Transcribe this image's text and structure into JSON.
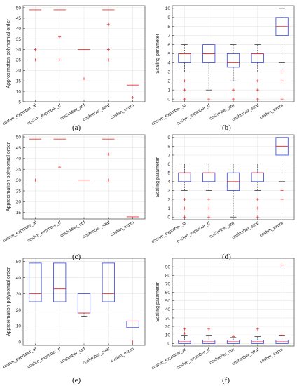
{
  "chart_data": [
    {
      "type": "box",
      "panel": "(a)",
      "ylabel": "Approximation polynomial order",
      "ylim": [
        5,
        51
      ],
      "yticks": [
        5,
        10,
        15,
        20,
        25,
        30,
        35,
        40,
        45,
        50
      ],
      "categories": [
        "coshm_expmber_al",
        "coshm_expmber_rf",
        "coshmber_strf",
        "coshmber_stral",
        "coshm_expm"
      ],
      "boxes": [
        {
          "q1": 49,
          "median": 49,
          "q3": 49,
          "whisker_low": 49,
          "whisker_high": 49,
          "outliers": [
            30,
            25
          ]
        },
        {
          "q1": 49,
          "median": 49,
          "q3": 49,
          "whisker_low": 49,
          "whisker_high": 49,
          "outliers": [
            36,
            25
          ]
        },
        {
          "q1": 30,
          "median": 30,
          "q3": 30,
          "whisker_low": 30,
          "whisker_high": 30,
          "outliers": [
            16
          ]
        },
        {
          "q1": 49,
          "median": 49,
          "q3": 49,
          "whisker_low": 49,
          "whisker_high": 49,
          "outliers": [
            42,
            30,
            25
          ]
        },
        {
          "q1": 13,
          "median": 13,
          "q3": 13,
          "whisker_low": 13,
          "whisker_high": 13,
          "outliers": [
            7
          ]
        }
      ]
    },
    {
      "type": "box",
      "panel": "(b)",
      "ylabel": "Scaling parameter",
      "ylim": [
        -0.3,
        10.3
      ],
      "yticks": [
        0,
        1,
        2,
        3,
        4,
        5,
        6,
        7,
        8,
        9,
        10
      ],
      "categories": [
        "coshm_expmber_al",
        "coshm_expmber_rf",
        "coshmber_strf",
        "coshmber_stral",
        "coshm_expm"
      ],
      "boxes": [
        {
          "q1": 4,
          "median": 5,
          "q3": 5,
          "whisker_low": 3,
          "whisker_high": 6,
          "outliers": [
            2,
            1,
            0
          ]
        },
        {
          "q1": 4,
          "median": 5,
          "q3": 6,
          "whisker_low": 1,
          "whisker_high": 6,
          "outliers": [
            0
          ]
        },
        {
          "q1": 3.5,
          "median": 4,
          "q3": 5,
          "whisker_low": 2,
          "whisker_high": 6,
          "outliers": [
            1,
            0
          ]
        },
        {
          "q1": 4,
          "median": 5,
          "q3": 5,
          "whisker_low": 3,
          "whisker_high": 6,
          "outliers": [
            2,
            1,
            0
          ]
        },
        {
          "q1": 7,
          "median": 8,
          "q3": 9,
          "whisker_low": 4,
          "whisker_high": 10,
          "outliers": [
            3,
            2,
            0
          ]
        }
      ]
    },
    {
      "type": "box",
      "panel": "(c)",
      "ylabel": "Approximation polynomial order",
      "ylim": [
        12,
        51
      ],
      "yticks": [
        15,
        20,
        25,
        30,
        35,
        40,
        45,
        50
      ],
      "categories": [
        "coshm_expmber_al",
        "coshm_expmber_rf",
        "coshmber_strf",
        "coshmber_stral",
        "coshm_expm"
      ],
      "boxes": [
        {
          "q1": 49,
          "median": 49,
          "q3": 49,
          "whisker_low": 49,
          "whisker_high": 49,
          "outliers": [
            30
          ]
        },
        {
          "q1": 49,
          "median": 49,
          "q3": 49,
          "whisker_low": 49,
          "whisker_high": 49,
          "outliers": [
            36
          ]
        },
        {
          "q1": 30,
          "median": 30,
          "q3": 30,
          "whisker_low": 30,
          "whisker_high": 30,
          "outliers": []
        },
        {
          "q1": 49,
          "median": 49,
          "q3": 49,
          "whisker_low": 49,
          "whisker_high": 49,
          "outliers": [
            42,
            30
          ]
        },
        {
          "q1": 13,
          "median": 13,
          "q3": 13,
          "whisker_low": 13,
          "whisker_high": 13,
          "outliers": []
        }
      ]
    },
    {
      "type": "box",
      "panel": "(d)",
      "ylabel": "Scaling parameter",
      "ylim": [
        -0.3,
        9.3
      ],
      "yticks": [
        0,
        1,
        2,
        3,
        4,
        5,
        6,
        7,
        8,
        9
      ],
      "categories": [
        "coshm_expmber_al",
        "coshm_expmber_rf",
        "coshmber_strf",
        "coshmber_stral",
        "coshm_expm"
      ],
      "boxes": [
        {
          "q1": 4,
          "median": 5,
          "q3": 5,
          "whisker_low": 3,
          "whisker_high": 6,
          "outliers": [
            2,
            1,
            0
          ]
        },
        {
          "q1": 4,
          "median": 5,
          "q3": 5,
          "whisker_low": 3,
          "whisker_high": 6,
          "outliers": [
            2,
            1,
            0
          ]
        },
        {
          "q1": 3,
          "median": 4,
          "q3": 5,
          "whisker_low": 0,
          "whisker_high": 6,
          "outliers": []
        },
        {
          "q1": 4,
          "median": 5,
          "q3": 5,
          "whisker_low": 3,
          "whisker_high": 6,
          "outliers": [
            2,
            1,
            0
          ]
        },
        {
          "q1": 7,
          "median": 8,
          "q3": 9,
          "whisker_low": 4,
          "whisker_high": 9,
          "outliers": [
            3,
            2
          ]
        }
      ]
    },
    {
      "type": "box",
      "panel": "(e)",
      "ylabel": "Approximation polynomial order",
      "ylim": [
        -2,
        52
      ],
      "yticks": [
        0,
        10,
        20,
        30,
        40,
        50
      ],
      "categories": [
        "coshm_expmber_al",
        "coshm_expmber_rf",
        "coshmber_strf",
        "coshmber_stral",
        "coshm_expm"
      ],
      "boxes": [
        {
          "q1": 25,
          "median": 30,
          "q3": 49,
          "whisker_low": 25,
          "whisker_high": 49,
          "outliers": []
        },
        {
          "q1": 25,
          "median": 33,
          "q3": 49,
          "whisker_low": 25,
          "whisker_high": 49,
          "outliers": []
        },
        {
          "q1": 18,
          "median": 18,
          "q3": 30,
          "whisker_low": 16,
          "whisker_high": 30,
          "outliers": []
        },
        {
          "q1": 25,
          "median": 30,
          "q3": 49,
          "whisker_low": 25,
          "whisker_high": 49,
          "outliers": []
        },
        {
          "q1": 9,
          "median": 13,
          "q3": 13,
          "whisker_low": 9,
          "whisker_high": 13,
          "outliers": [
            0
          ]
        }
      ]
    },
    {
      "type": "box",
      "panel": "(f)",
      "ylabel": "Scaling parameter",
      "ylim": [
        -3,
        100
      ],
      "yticks": [
        0,
        10,
        20,
        30,
        40,
        50,
        60,
        70,
        80,
        90
      ],
      "categories": [
        "coshm_expmber_al",
        "coshm_expmber_rf",
        "coshmber_strf",
        "coshmber_stral",
        "coshm_expm"
      ],
      "boxes": [
        {
          "q1": 0,
          "median": 2,
          "q3": 4,
          "whisker_low": 0,
          "whisker_high": 9,
          "outliers": [
            12,
            17
          ]
        },
        {
          "q1": 0,
          "median": 2,
          "q3": 4,
          "whisker_low": 0,
          "whisker_high": 9,
          "outliers": [
            17
          ]
        },
        {
          "q1": 0,
          "median": 2,
          "q3": 4,
          "whisker_low": 0,
          "whisker_high": 7,
          "outliers": [
            8
          ]
        },
        {
          "q1": 0,
          "median": 2,
          "q3": 4,
          "whisker_low": 0,
          "whisker_high": 8,
          "outliers": [
            17
          ]
        },
        {
          "q1": 0,
          "median": 2,
          "q3": 4,
          "whisker_low": 0,
          "whisker_high": 9,
          "outliers": [
            10,
            92
          ]
        }
      ]
    }
  ]
}
